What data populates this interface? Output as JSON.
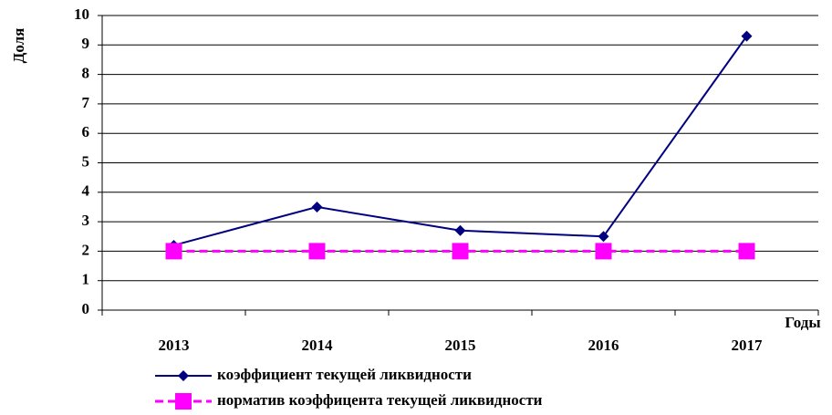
{
  "chart_data": {
    "type": "line",
    "xlabel": "Годы",
    "ylabel": "Доля",
    "categories": [
      "2013",
      "2014",
      "2015",
      "2016",
      "2017"
    ],
    "series": [
      {
        "name": "коэффициент текущей ликвидности",
        "color": "#000080",
        "marker": "diamond",
        "dash": false,
        "values": [
          2.2,
          3.5,
          2.7,
          2.5,
          9.3
        ]
      },
      {
        "name": "норматив коэффицента текущей ликвидности",
        "color": "#ff00ff",
        "marker": "square",
        "dash": true,
        "values": [
          2,
          2,
          2,
          2,
          2
        ]
      }
    ],
    "ylim": [
      0,
      10
    ],
    "yticks": [
      0,
      1,
      2,
      3,
      4,
      5,
      6,
      7,
      8,
      9,
      10
    ],
    "grid": true,
    "legend": "bottom"
  }
}
